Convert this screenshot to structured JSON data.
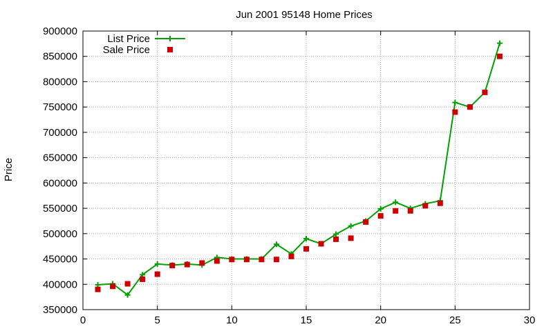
{
  "chart_data": {
    "type": "line",
    "title": "Jun 2001 95148 Home Prices",
    "xlabel": "",
    "ylabel": "Price",
    "xlim": [
      0,
      30
    ],
    "ylim": [
      350000,
      900000
    ],
    "xticks": [
      0,
      5,
      10,
      15,
      20,
      25,
      30
    ],
    "yticks": [
      350000,
      400000,
      450000,
      500000,
      550000,
      600000,
      650000,
      700000,
      750000,
      800000,
      850000,
      900000
    ],
    "grid": true,
    "legend_position": "top-left",
    "series": [
      {
        "name": "List Price",
        "style": "lines with plus markers",
        "color": "#00a000",
        "x": [
          1,
          2,
          3,
          4,
          5,
          6,
          7,
          8,
          9,
          10,
          11,
          12,
          13,
          14,
          15,
          16,
          17,
          18,
          19,
          20,
          21,
          22,
          23,
          24,
          25,
          26,
          27,
          28
        ],
        "y": [
          399000,
          401000,
          379000,
          419000,
          440000,
          438000,
          440000,
          438000,
          453000,
          450000,
          450000,
          450000,
          479000,
          460000,
          490000,
          480000,
          499000,
          515000,
          525000,
          549000,
          562000,
          550000,
          559000,
          565000,
          759000,
          750000,
          779000,
          876000
        ]
      },
      {
        "name": "Sale Price",
        "style": "square markers",
        "color": "#cc0000",
        "x": [
          1,
          2,
          3,
          4,
          5,
          6,
          7,
          8,
          9,
          10,
          11,
          12,
          13,
          14,
          15,
          16,
          17,
          18,
          19,
          20,
          21,
          22,
          23,
          24,
          25,
          26,
          27,
          28
        ],
        "y": [
          390000,
          396000,
          401000,
          410000,
          420000,
          437000,
          439000,
          442000,
          446000,
          449000,
          449000,
          449000,
          449000,
          455000,
          470000,
          480000,
          489000,
          491000,
          523000,
          535000,
          545000,
          545000,
          555000,
          560000,
          740000,
          750000,
          779000,
          850000
        ]
      }
    ]
  }
}
